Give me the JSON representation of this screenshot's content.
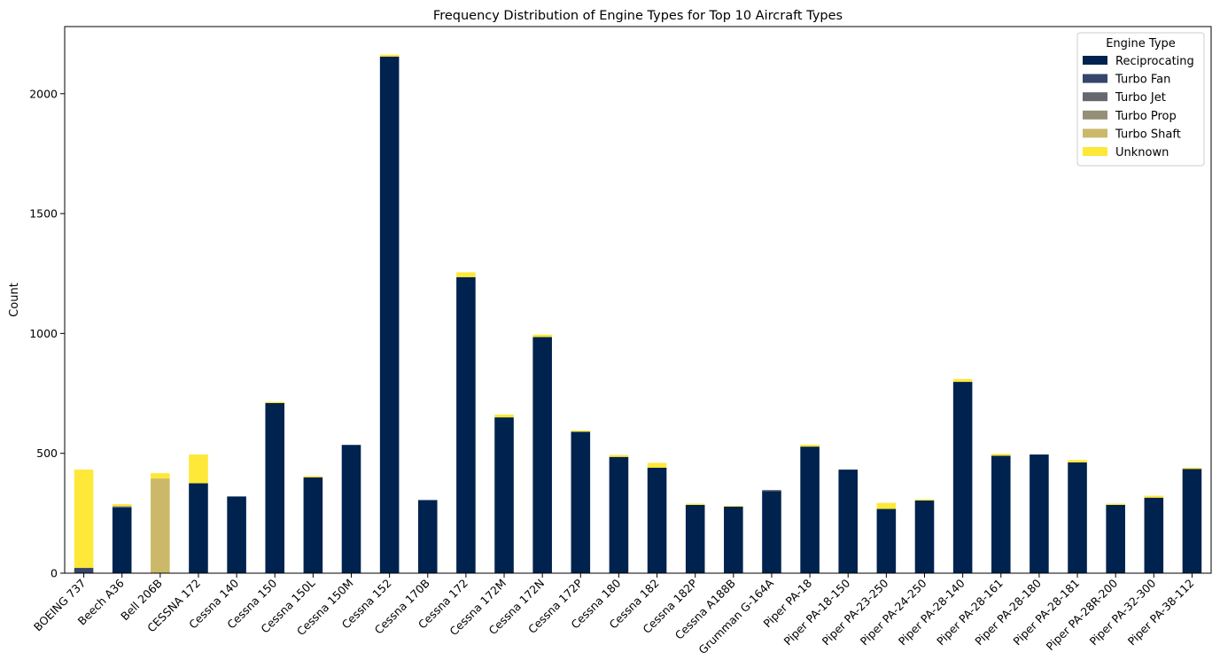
{
  "chart_data": {
    "type": "bar",
    "stacked": true,
    "title": "Frequency Distribution of Engine Types for Top 10 Aircraft Types",
    "xlabel": "",
    "ylabel": "Count",
    "ylim": [
      0,
      2280
    ],
    "yticks": [
      "0",
      "500",
      "1000",
      "1500",
      "2000"
    ],
    "grid": false,
    "legend": {
      "title": "Engine Type",
      "position": "top-right"
    },
    "categories": [
      "BOEING 737",
      "Beech A36",
      "Bell 206B",
      "CESSNA 172",
      "Cessna 140",
      "Cessna 150",
      "Cessna 150L",
      "Cessna 150M",
      "Cessna 152",
      "Cessna 170B",
      "Cessna 172",
      "Cessna 172M",
      "Cessna 172N",
      "Cessna 172P",
      "Cessna 180",
      "Cessna 182",
      "Cessna 182P",
      "Cessna A188B",
      "Grumman G-164A",
      "Piper PA-18",
      "Piper PA-18-150",
      "Piper PA-23-250",
      "Piper PA-24-250",
      "Piper PA-28-140",
      "Piper PA-28-161",
      "Piper PA-28-180",
      "Piper PA-28-181",
      "Piper PA-28R-200",
      "Piper PA-32-300",
      "Piper PA-38-112"
    ],
    "series": [
      {
        "name": "Reciprocating",
        "color": "#00224e",
        "values": [
          0,
          275,
          0,
          375,
          320,
          710,
          400,
          535,
          2155,
          305,
          1235,
          650,
          985,
          590,
          485,
          440,
          285,
          278,
          342,
          528,
          432,
          268,
          303,
          798,
          490,
          495,
          462,
          285,
          315,
          435
        ]
      },
      {
        "name": "Turbo Fan",
        "color": "#35456c",
        "values": [
          22,
          0,
          0,
          0,
          0,
          0,
          0,
          0,
          0,
          0,
          0,
          0,
          0,
          0,
          0,
          0,
          0,
          0,
          0,
          0,
          0,
          0,
          0,
          0,
          0,
          0,
          0,
          0,
          0,
          0
        ]
      },
      {
        "name": "Turbo Jet",
        "color": "#666870",
        "values": [
          0,
          0,
          0,
          0,
          0,
          0,
          0,
          0,
          0,
          0,
          0,
          0,
          0,
          0,
          0,
          0,
          0,
          0,
          5,
          0,
          0,
          0,
          0,
          0,
          0,
          0,
          0,
          0,
          0,
          0
        ]
      },
      {
        "name": "Turbo Prop",
        "color": "#958f78",
        "values": [
          0,
          5,
          0,
          0,
          0,
          0,
          0,
          0,
          0,
          0,
          0,
          0,
          0,
          0,
          0,
          0,
          0,
          0,
          0,
          0,
          0,
          0,
          0,
          0,
          0,
          0,
          0,
          0,
          0,
          0
        ]
      },
      {
        "name": "Turbo Shaft",
        "color": "#cbb969",
        "values": [
          0,
          0,
          395,
          0,
          0,
          0,
          0,
          0,
          0,
          0,
          0,
          0,
          0,
          0,
          0,
          0,
          0,
          0,
          0,
          0,
          0,
          0,
          0,
          0,
          0,
          0,
          0,
          0,
          0,
          0
        ]
      },
      {
        "name": "Unknown",
        "color": "#fee838",
        "values": [
          410,
          8,
          22,
          120,
          0,
          5,
          5,
          0,
          8,
          0,
          20,
          12,
          10,
          5,
          8,
          20,
          5,
          3,
          0,
          8,
          0,
          25,
          5,
          12,
          8,
          0,
          10,
          5,
          8,
          5
        ]
      }
    ]
  }
}
